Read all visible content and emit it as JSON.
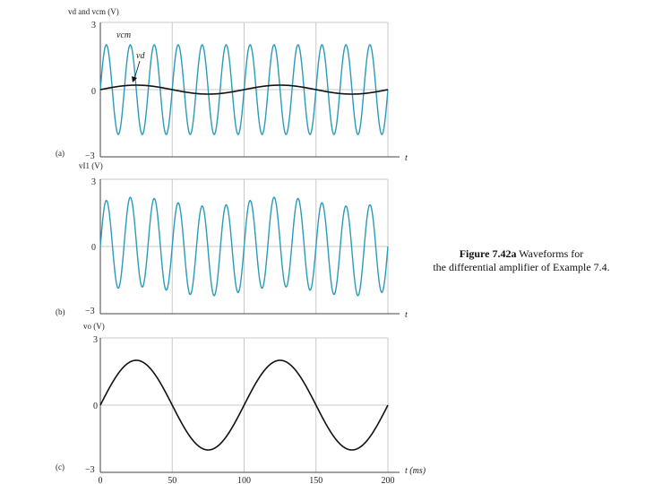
{
  "caption": {
    "label": "Figure 7.42a",
    "text_line1": "Waveforms for",
    "text_line2": "the differential amplifier of Example 7.4."
  },
  "colors": {
    "blue_wave": "#2a9bb8",
    "black_wave": "#111111",
    "grid": "#c8c8c8"
  },
  "chart_data": [
    {
      "type": "line",
      "panel_label": "(a)",
      "ylabel": "vd and vcm (V)",
      "xlabel": "t",
      "ylim": [
        -3,
        3
      ],
      "xlim": [
        0,
        200
      ],
      "y_ticks": [
        "3",
        "0",
        "−3"
      ],
      "grid": true,
      "annotations": [
        "vcm",
        "vd"
      ],
      "series": [
        {
          "name": "vcm",
          "color": "blue",
          "function": "sine",
          "amplitude": 2,
          "cycles": 12,
          "phase_deg": 0
        },
        {
          "name": "vd",
          "color": "black",
          "function": "sine",
          "amplitude": 0.2,
          "cycles": 2,
          "phase_deg": 0
        }
      ]
    },
    {
      "type": "line",
      "panel_label": "(b)",
      "ylabel": "vI1 (V)",
      "xlabel": "t",
      "ylim": [
        -3,
        3
      ],
      "xlim": [
        0,
        200
      ],
      "y_ticks": [
        "3",
        "0",
        "−3"
      ],
      "grid": true,
      "series": [
        {
          "color": "blue",
          "function": "sine",
          "amplitude": 2,
          "cycles": 12,
          "phase_deg": 0,
          "modulation_amplitude": 0.2,
          "modulation_cycles": 2
        }
      ]
    },
    {
      "type": "line",
      "panel_label": "(c)",
      "ylabel": "vo (V)",
      "xlabel": "t (ms)",
      "ylim": [
        -3,
        3
      ],
      "xlim": [
        0,
        200
      ],
      "y_ticks": [
        "3",
        "0",
        "−3"
      ],
      "x_ticks": [
        "0",
        "50",
        "100",
        "150",
        "200"
      ],
      "grid": true,
      "series": [
        {
          "color": "black",
          "function": "sine",
          "amplitude": 2,
          "cycles": 2,
          "phase_deg": 0
        }
      ]
    }
  ]
}
